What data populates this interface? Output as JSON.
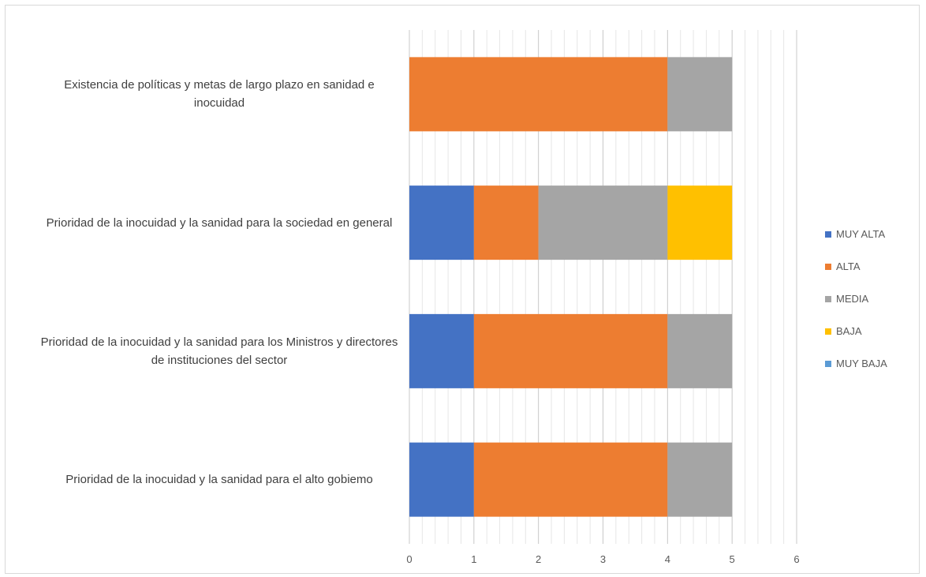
{
  "chart_data": {
    "type": "bar",
    "orientation": "horizontal",
    "stacked": true,
    "categories": [
      "Prioridad  de la inocuidad  y la sanidad para el alto gobiemo",
      "Prioridad  de la inocuidad  y la sanidad para los Ministros  y directores  de instituciones  del sector",
      "Prioridad  de la inocuidad  y la sanidad para la sociedad en general",
      "Existencia  de políticas  y metas de largo plazo en sanidad e inocuidad"
    ],
    "series": [
      {
        "name": "MUY ALTA",
        "color": "#4472c4",
        "values": [
          1,
          1,
          1,
          0
        ]
      },
      {
        "name": "ALTA",
        "color": "#ed7d31",
        "values": [
          3,
          3,
          1,
          4
        ]
      },
      {
        "name": "MEDIA",
        "color": "#a5a5a5",
        "values": [
          1,
          1,
          2,
          1
        ]
      },
      {
        "name": "BAJA",
        "color": "#ffc000",
        "values": [
          0,
          0,
          1,
          0
        ]
      },
      {
        "name": "MUY BAJA",
        "color": "#5b9bd5",
        "values": [
          0,
          0,
          0,
          0
        ]
      }
    ],
    "xlim": [
      0,
      6
    ],
    "xticks": [
      "0",
      "1",
      "2",
      "3",
      "4",
      "5",
      "6"
    ],
    "grid": "major and minor vertical",
    "legend_position": "right"
  }
}
